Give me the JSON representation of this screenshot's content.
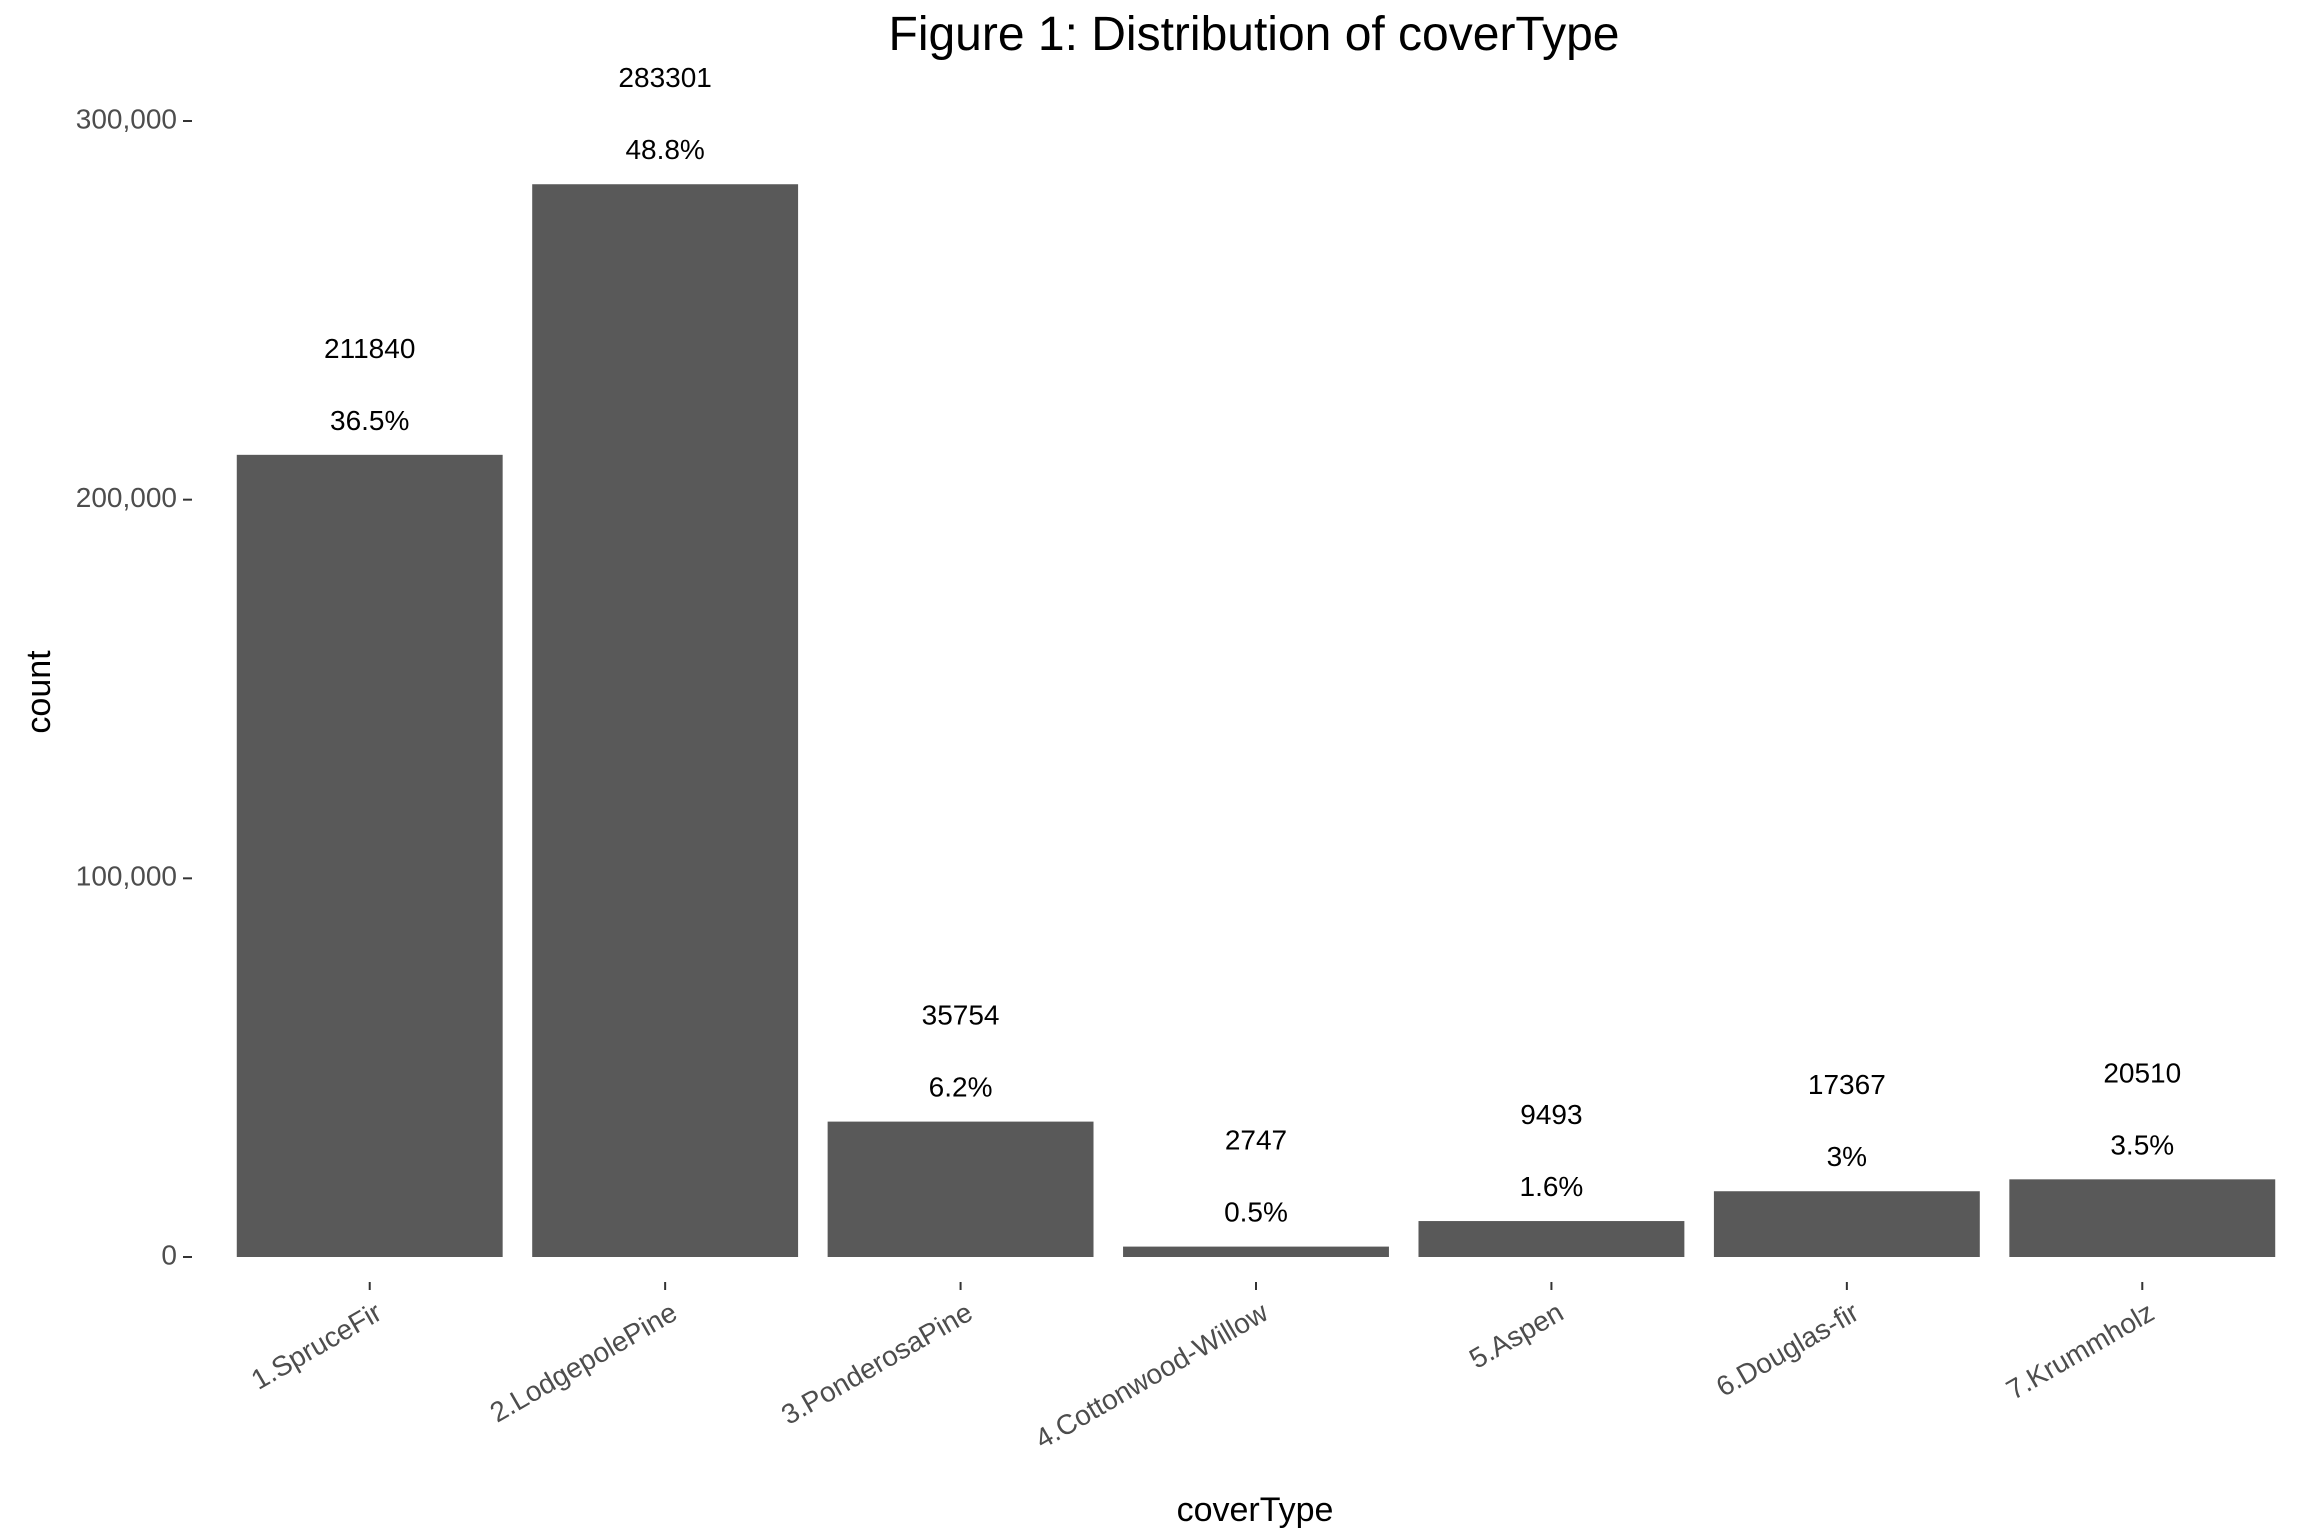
{
  "chart_data": {
    "type": "bar",
    "title": "Figure  1: Distribution of coverType",
    "xlabel": "coverType",
    "ylabel": "count",
    "categories": [
      "1.SpruceFir",
      "2.LodgepolePine",
      "3.PonderosaPine",
      "4.Cottonwood-Willow",
      "5.Aspen",
      "6.Douglas-fir",
      "7.Krummholz"
    ],
    "values": [
      211840,
      283301,
      35754,
      2747,
      9493,
      17367,
      20510
    ],
    "count_labels": [
      "211840",
      "283301",
      "35754",
      "2747",
      "9493",
      "17367",
      "20510"
    ],
    "percent_labels": [
      "36.5%",
      "48.8%",
      "6.2%",
      "0.5%",
      "1.6%",
      "3%",
      "3.5%"
    ],
    "y_ticks": [
      0,
      100000,
      200000,
      300000
    ],
    "y_tick_labels": [
      "0",
      "100,000",
      "200,000",
      "300,000"
    ],
    "ylim": [
      0,
      310000
    ],
    "grid": false,
    "legend": "none",
    "bar_color": "#595959"
  }
}
